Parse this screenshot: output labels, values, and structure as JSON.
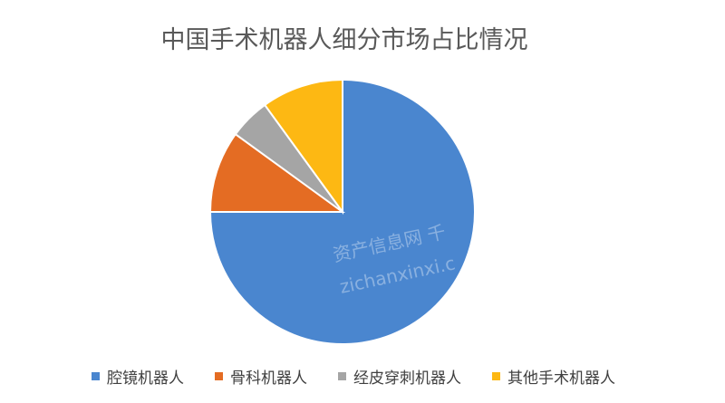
{
  "chart_data": {
    "type": "pie",
    "title": "中国手术机器人细分市场占比情况",
    "categories": [
      "腔镜机器人",
      "骨科机器人",
      "经皮穿刺机器人",
      "其他手术机器人"
    ],
    "values": [
      75,
      10,
      5,
      10
    ],
    "colors": [
      "#4A86CF",
      "#E46C23",
      "#A5A5A5",
      "#FDB813"
    ],
    "start_angle": "12 o'clock",
    "direction": "clockwise",
    "legend_position": "bottom"
  },
  "watermark": [
    "资产信息网 千",
    "zichanxinxi.c"
  ]
}
